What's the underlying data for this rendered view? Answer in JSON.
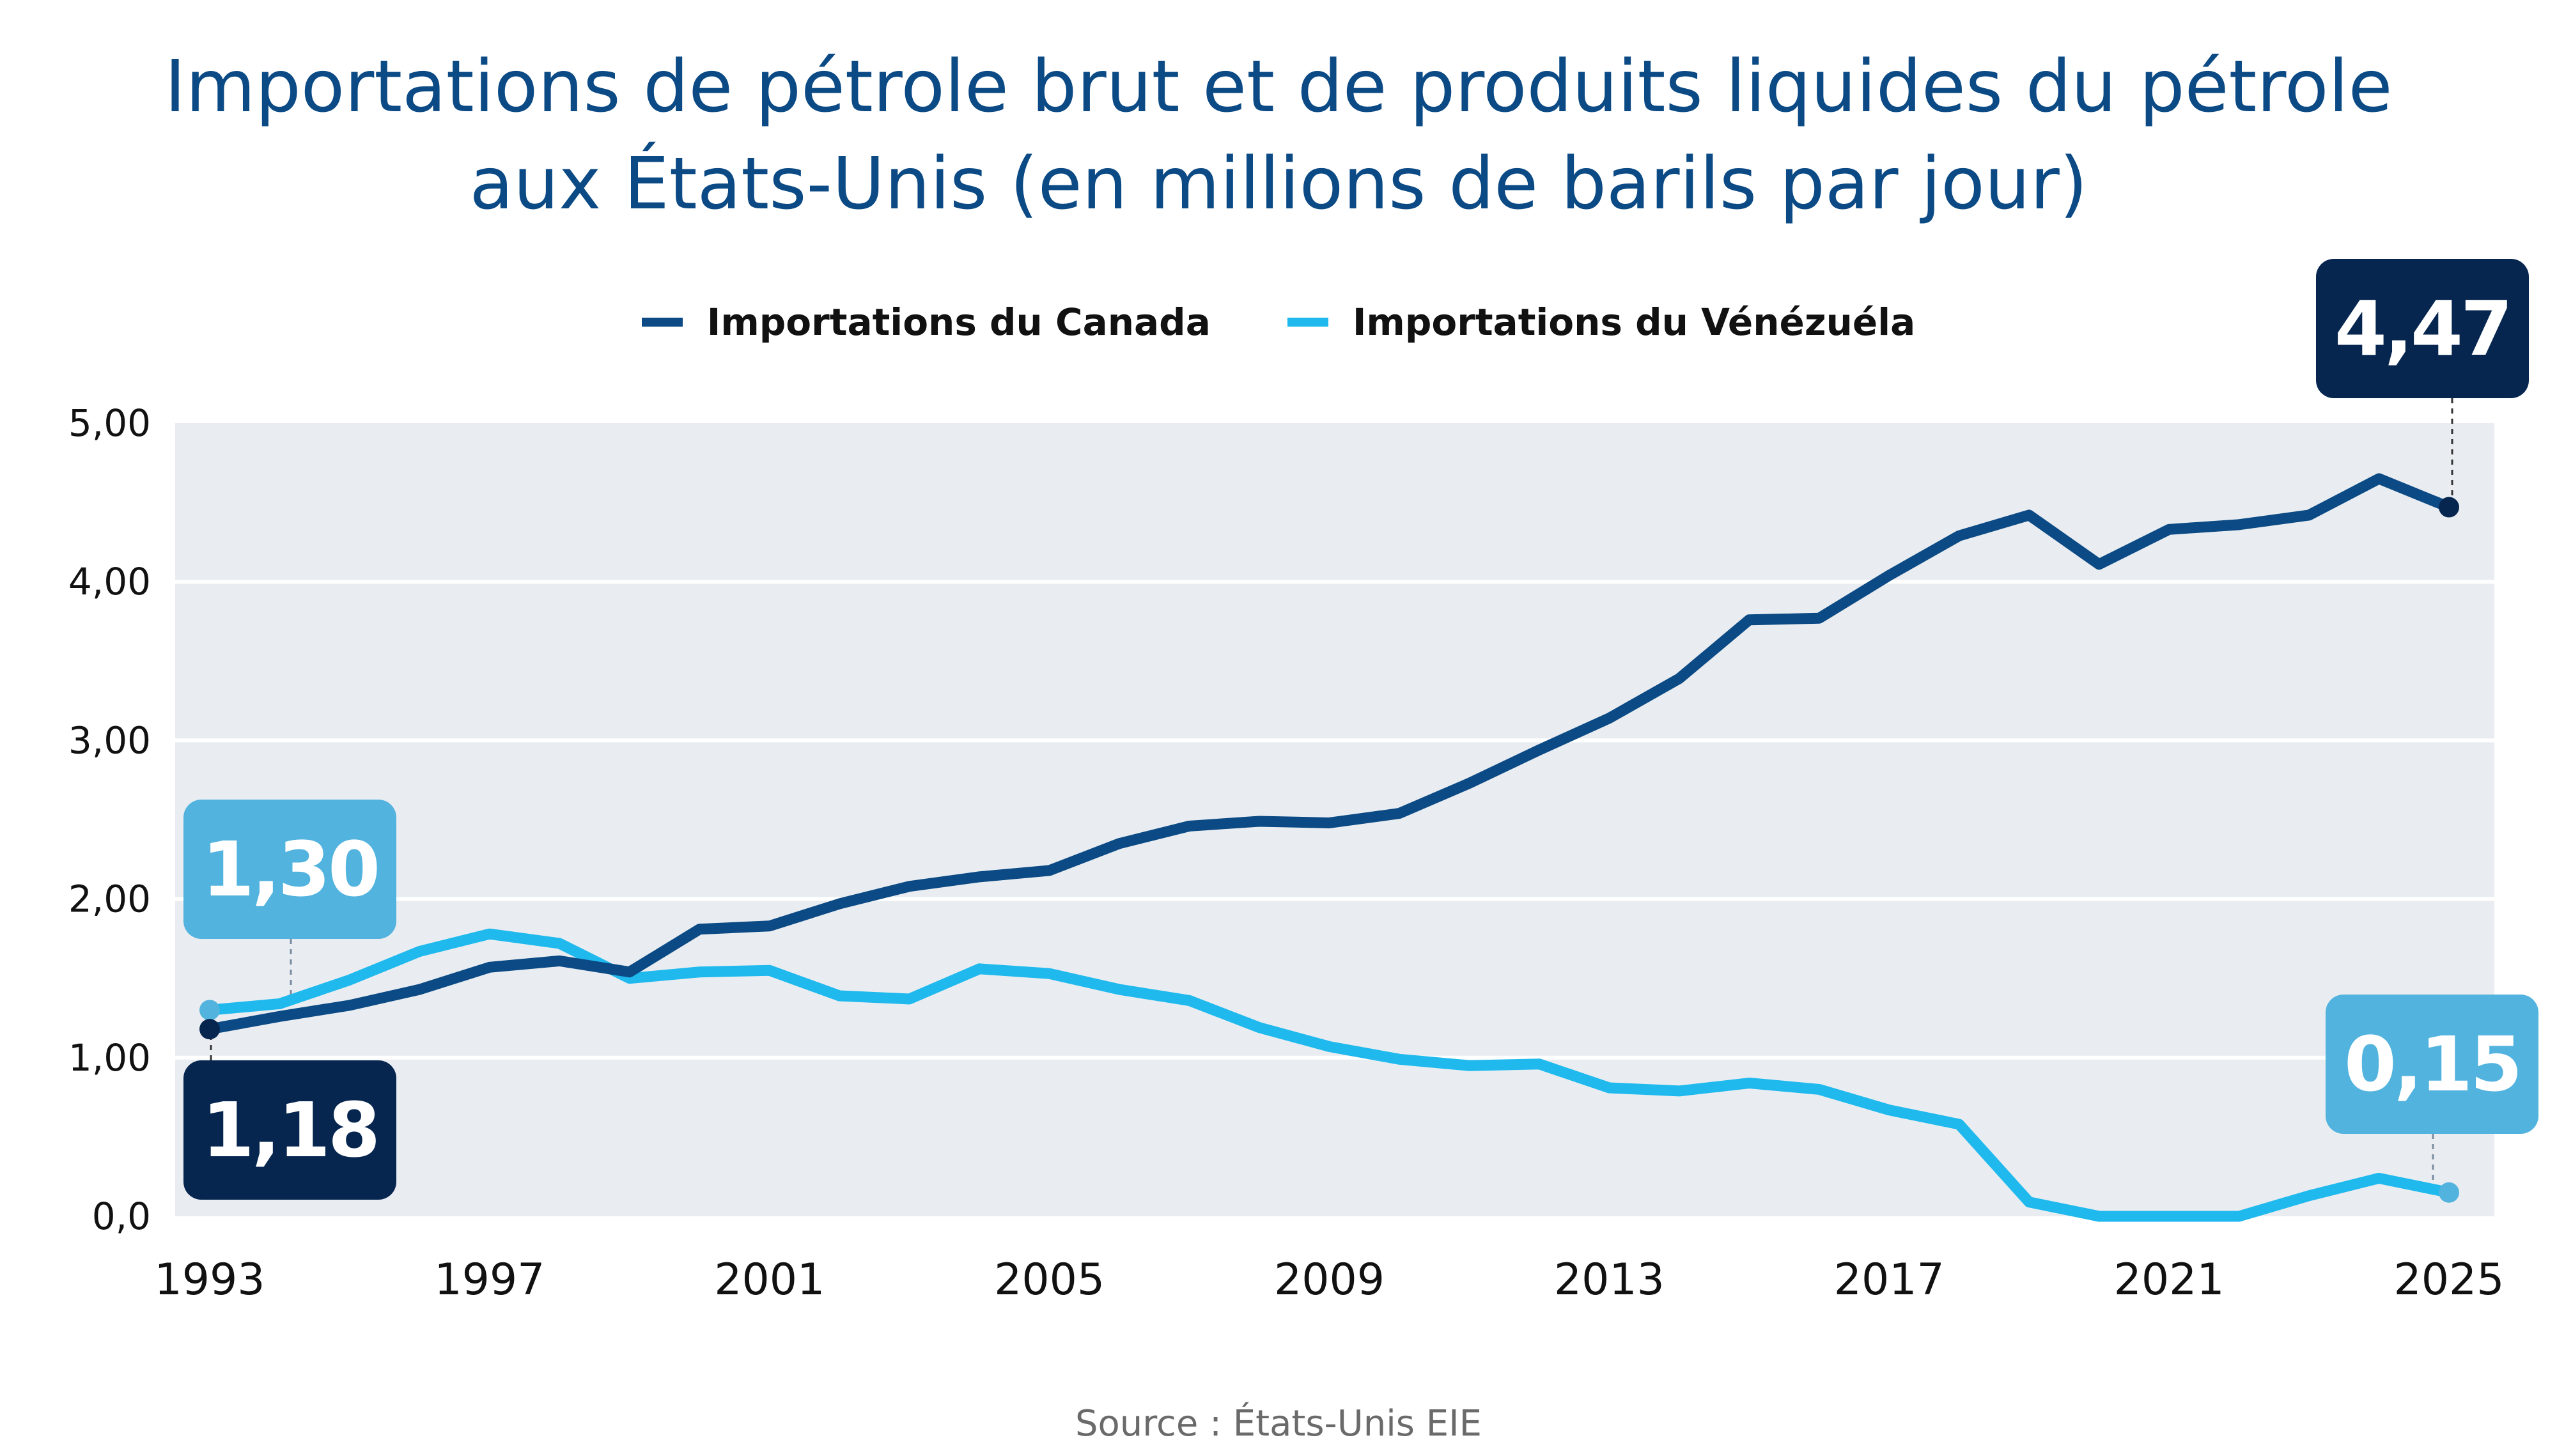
{
  "title": [
    "Importations de pétrole brut et de produits liquides du pétrole",
    "aux États-Unis (en millions de barils par jour)"
  ],
  "source": "Source : États-Unis EIE",
  "colors": {
    "canada": "#0b4a84",
    "venezuela": "#1fb9ee",
    "callout_dark": "#06264f",
    "callout_light": "#52b3de",
    "plot_bg": "#e9edf1"
  },
  "chart_data": {
    "type": "line",
    "title": "Importations de pétrole brut et de produits liquides du pétrole aux États-Unis (en millions de barils par jour)",
    "xlabel": "",
    "ylabel": "",
    "x": [
      1993,
      1994,
      1995,
      1996,
      1997,
      1998,
      1999,
      2000,
      2001,
      2002,
      2003,
      2004,
      2005,
      2006,
      2007,
      2008,
      2009,
      2010,
      2011,
      2012,
      2013,
      2014,
      2015,
      2016,
      2017,
      2018,
      2019,
      2020,
      2021,
      2022,
      2023,
      2024,
      2025
    ],
    "xticks": [
      "1993",
      "1997",
      "2001",
      "2005",
      "2009",
      "2013",
      "2017",
      "2021",
      "2025"
    ],
    "yticks": [
      "0,0",
      "1,00",
      "2,00",
      "3,00",
      "4,00",
      "5,00"
    ],
    "ylim": [
      0,
      5
    ],
    "grid": true,
    "legend_position": "top",
    "series": [
      {
        "name": "Importations du Canada",
        "values": [
          1.18,
          1.26,
          1.33,
          1.43,
          1.57,
          1.61,
          1.54,
          1.81,
          1.83,
          1.97,
          2.08,
          2.14,
          2.18,
          2.35,
          2.46,
          2.49,
          2.48,
          2.54,
          2.73,
          2.94,
          3.14,
          3.39,
          3.76,
          3.77,
          4.04,
          4.29,
          4.42,
          4.11,
          4.33,
          4.36,
          4.42,
          4.65,
          4.47
        ]
      },
      {
        "name": "Importations du Vénézuéla",
        "values": [
          1.3,
          1.34,
          1.49,
          1.67,
          1.78,
          1.72,
          1.5,
          1.54,
          1.55,
          1.39,
          1.37,
          1.56,
          1.53,
          1.43,
          1.36,
          1.19,
          1.07,
          0.99,
          0.95,
          0.96,
          0.81,
          0.79,
          0.84,
          0.8,
          0.67,
          0.58,
          0.09,
          0.0,
          0.0,
          0.0,
          0.13,
          0.24,
          0.15
        ]
      }
    ],
    "annotations": {
      "canada_start": "1,18",
      "canada_end": "4,47",
      "venezuela_start": "1,30",
      "venezuela_end": "0,15"
    }
  }
}
